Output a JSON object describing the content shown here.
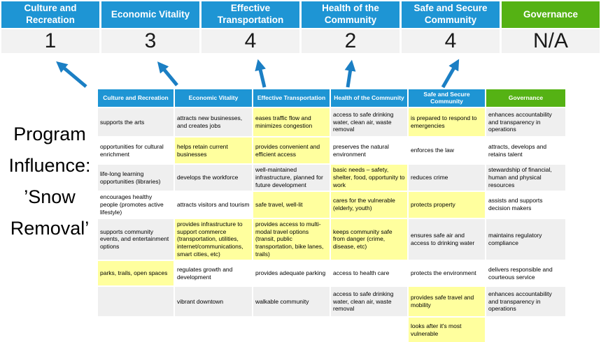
{
  "colors": {
    "blue": "#1E95D4",
    "green": "#55B214",
    "yellow": "#FFFF9E",
    "row_alt": "#EFEFEF",
    "score_bg": "#F2F2F2",
    "arrow": "#1B7FC4"
  },
  "banner": {
    "columns": [
      {
        "label": "Culture and Recreation",
        "score": "1",
        "color": "blue"
      },
      {
        "label": "Economic Vitality",
        "score": "3",
        "color": "blue"
      },
      {
        "label": "Effective Transportation",
        "score": "4",
        "color": "blue"
      },
      {
        "label": "Health of the Community",
        "score": "2",
        "color": "blue"
      },
      {
        "label": "Safe and Secure Community",
        "score": "4",
        "color": "blue"
      },
      {
        "label": "Governance",
        "score": "N/A",
        "color": "green"
      }
    ]
  },
  "program_influence": {
    "lines": [
      "Program",
      "Influence:",
      "’Snow",
      "Removal’"
    ]
  },
  "matrix": {
    "headers": [
      "Culture and Recreation",
      "Economic Vitality",
      "Effective Transportation",
      "Health of the Community",
      "Safe and Secure Community",
      "Governance"
    ],
    "rows": [
      [
        {
          "text": "supports the arts",
          "hl": false
        },
        {
          "text": "attracts new businesses, and creates jobs",
          "hl": false
        },
        {
          "text": "eases traffic flow and minimizes congestion",
          "hl": true
        },
        {
          "text": "access to safe drinking water, clean air, waste removal",
          "hl": false
        },
        {
          "text": "is prepared to respond to emergencies",
          "hl": true
        },
        {
          "text": "enhances accountability and transparency in operations",
          "hl": false
        }
      ],
      [
        {
          "text": "opportunities for cultural enrichment",
          "hl": false
        },
        {
          "text": "helps retain current businesses",
          "hl": true
        },
        {
          "text": "provides convenient and efficient access",
          "hl": true
        },
        {
          "text": "preserves the natural environment",
          "hl": false
        },
        {
          "text": "enforces the law",
          "hl": false
        },
        {
          "text": "attracts, develops and retains talent",
          "hl": false
        }
      ],
      [
        {
          "text": "life-long learning opportunities (libraries)",
          "hl": false
        },
        {
          "text": "develops the workforce",
          "hl": false
        },
        {
          "text": "well-maintained infrastructure, planned for future development",
          "hl": false
        },
        {
          "text": "basic needs – safety, shelter, food, opportunity to work",
          "hl": true
        },
        {
          "text": "reduces crime",
          "hl": false
        },
        {
          "text": "stewardship of financial, human and physical resources",
          "hl": false
        }
      ],
      [
        {
          "text": "encourages healthy people (promotes active lifestyle)",
          "hl": false
        },
        {
          "text": "attracts visitors and tourism",
          "hl": false
        },
        {
          "text": "safe travel, well-lit",
          "hl": true
        },
        {
          "text": "cares for the vulnerable (elderly, youth)",
          "hl": true
        },
        {
          "text": "protects property",
          "hl": true
        },
        {
          "text": "assists and supports decision makers",
          "hl": false
        }
      ],
      [
        {
          "text": "supports community events, and entertainment options",
          "hl": false
        },
        {
          "text": "provides infrastructure to support commerce (transportation, utilities, internet/communications, smart cities, etc)",
          "hl": true
        },
        {
          "text": "provides access to multi-modal travel options (transit, public transportation, bike lanes, trails)",
          "hl": true
        },
        {
          "text": "keeps community safe from danger (crime, disease, etc)",
          "hl": true
        },
        {
          "text": "ensures safe air and access to drinking water",
          "hl": false
        },
        {
          "text": "maintains regulatory compliance",
          "hl": false
        }
      ],
      [
        {
          "text": "parks, trails, open spaces",
          "hl": true
        },
        {
          "text": "regulates growth and development",
          "hl": false
        },
        {
          "text": "provides adequate parking",
          "hl": false
        },
        {
          "text": "access to health care",
          "hl": false
        },
        {
          "text": "protects the environment",
          "hl": false
        },
        {
          "text": "delivers responsible and courteous service",
          "hl": false
        }
      ],
      [
        {
          "text": "",
          "hl": false
        },
        {
          "text": "vibrant downtown",
          "hl": false
        },
        {
          "text": "walkable community",
          "hl": false
        },
        {
          "text": "access to safe drinking water, clean air, waste removal",
          "hl": false
        },
        {
          "text": "provides safe travel and mobility",
          "hl": true
        },
        {
          "text": "enhances accountability and transparency in operations",
          "hl": false
        }
      ],
      [
        {
          "text": "",
          "hl": false
        },
        {
          "text": "",
          "hl": false
        },
        {
          "text": "",
          "hl": false
        },
        {
          "text": "",
          "hl": false
        },
        {
          "text": "looks after it's most vulnerable",
          "hl": true
        },
        {
          "text": "",
          "hl": false
        }
      ]
    ]
  }
}
